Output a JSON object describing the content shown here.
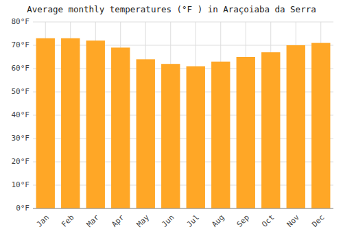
{
  "chart_data": {
    "type": "bar",
    "title": "Average monthly temperatures (°F ) in Araçoiaba da Serra",
    "categories": [
      "Jan",
      "Feb",
      "Mar",
      "Apr",
      "May",
      "Jun",
      "Jul",
      "Aug",
      "Sep",
      "Oct",
      "Nov",
      "Dec"
    ],
    "values": [
      73,
      73,
      72,
      69,
      64,
      62,
      61,
      63,
      65,
      67,
      70,
      71
    ],
    "color": "#FFA726",
    "ylim": [
      0,
      80
    ],
    "yticks": [
      {
        "value": 0,
        "label": "0°F"
      },
      {
        "value": 10,
        "label": "10°F"
      },
      {
        "value": 20,
        "label": "20°F"
      },
      {
        "value": 30,
        "label": "30°F"
      },
      {
        "value": 40,
        "label": "40°F"
      },
      {
        "value": 50,
        "label": "50°F"
      },
      {
        "value": 60,
        "label": "60°F"
      },
      {
        "value": 70,
        "label": "70°F"
      },
      {
        "value": 80,
        "label": "80°F"
      }
    ],
    "grid": true
  }
}
